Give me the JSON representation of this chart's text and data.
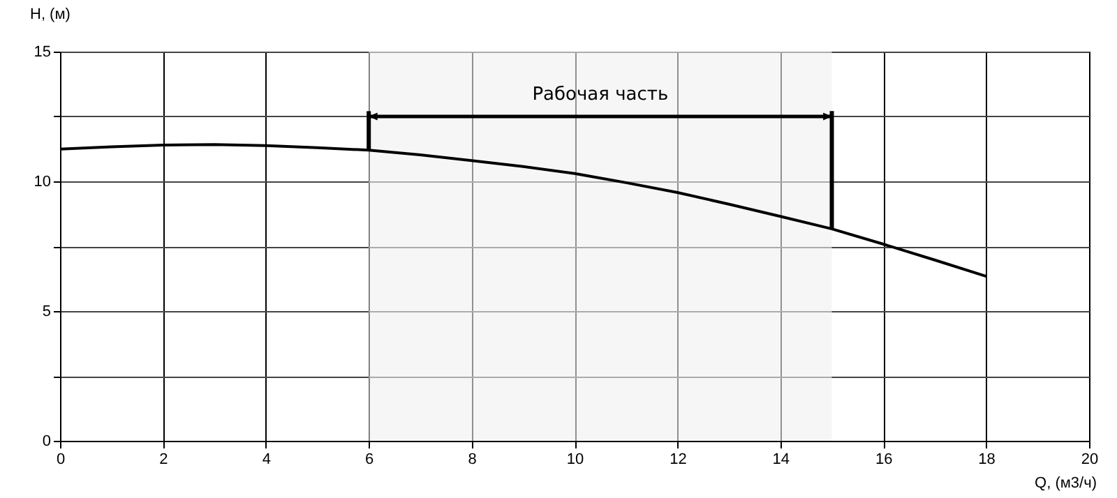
{
  "chart_data": {
    "type": "line",
    "xlabel": "Q, (м3/ч)",
    "ylabel": "H, (м)",
    "x": [
      0,
      1,
      2,
      3,
      4,
      5,
      6,
      7,
      8,
      9,
      10,
      11,
      12,
      13,
      14,
      15,
      16,
      17,
      18
    ],
    "series": [
      {
        "color": "#000000",
        "values": [
          11.24,
          11.33,
          11.4,
          11.42,
          11.38,
          11.3,
          11.2,
          11.02,
          10.8,
          10.57,
          10.3,
          9.95,
          9.57,
          9.12,
          8.65,
          8.17,
          7.58,
          6.97,
          6.34
        ]
      }
    ],
    "xlim": [
      0,
      20
    ],
    "xticks": [
      0,
      2,
      4,
      6,
      8,
      10,
      12,
      14,
      16,
      18,
      20
    ],
    "ylim": [
      0,
      15
    ],
    "yticks": [
      0,
      {
        "value": 2.5,
        "label": null
      },
      5,
      {
        "value": 7.5,
        "label": null
      },
      10,
      {
        "value": 12.5,
        "label": null
      },
      15
    ],
    "bands": [
      {
        "axis": "x",
        "from": 6,
        "to": 15,
        "label": "Рабочая часть"
      }
    ],
    "grid": true,
    "marker": "none",
    "line_style": "solid"
  }
}
